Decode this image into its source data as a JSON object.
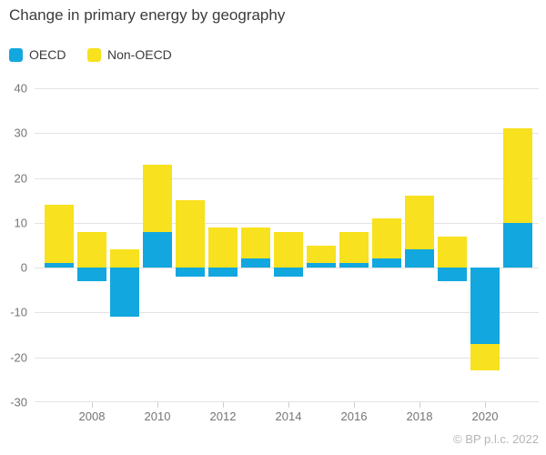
{
  "title": "Change in primary energy by geography",
  "footer": "© BP p.l.c. 2022",
  "legend": [
    {
      "label": "OECD",
      "color": "#12a7df"
    },
    {
      "label": "Non-OECD",
      "color": "#f8e11e"
    }
  ],
  "colors": {
    "oecd_blue": "#12a7df",
    "non_oecd_yellow": "#f8e11e",
    "gridline": "#e2e2e2",
    "axis_text": "#757575",
    "title_text": "#3c3c3c",
    "footer_text": "#b5b5b5"
  },
  "chart_data": {
    "type": "bar",
    "stacked": true,
    "title": "Change in primary energy by geography",
    "categories": [
      2007,
      2008,
      2009,
      2010,
      2011,
      2012,
      2013,
      2014,
      2015,
      2016,
      2017,
      2018,
      2019,
      2020,
      2021
    ],
    "series": [
      {
        "name": "OECD",
        "color": "#12a7df",
        "values": [
          1,
          -3,
          -11,
          8,
          -2,
          -2,
          2,
          -2,
          1,
          1,
          2,
          4,
          -3,
          -17,
          10
        ]
      },
      {
        "name": "Non-OECD",
        "color": "#f8e11e",
        "values": [
          13,
          8,
          4,
          15,
          15,
          9,
          7,
          8,
          4,
          7,
          9,
          12,
          7,
          -6,
          21
        ]
      }
    ],
    "xlabel": "",
    "ylabel": "",
    "ylim": [
      -30,
      40
    ],
    "yticks": [
      40,
      30,
      20,
      10,
      0,
      -10,
      -20,
      -30
    ],
    "xticks": [
      2008,
      2010,
      2012,
      2014,
      2016,
      2018,
      2020
    ],
    "grid": true,
    "legend_position": "top-left"
  }
}
